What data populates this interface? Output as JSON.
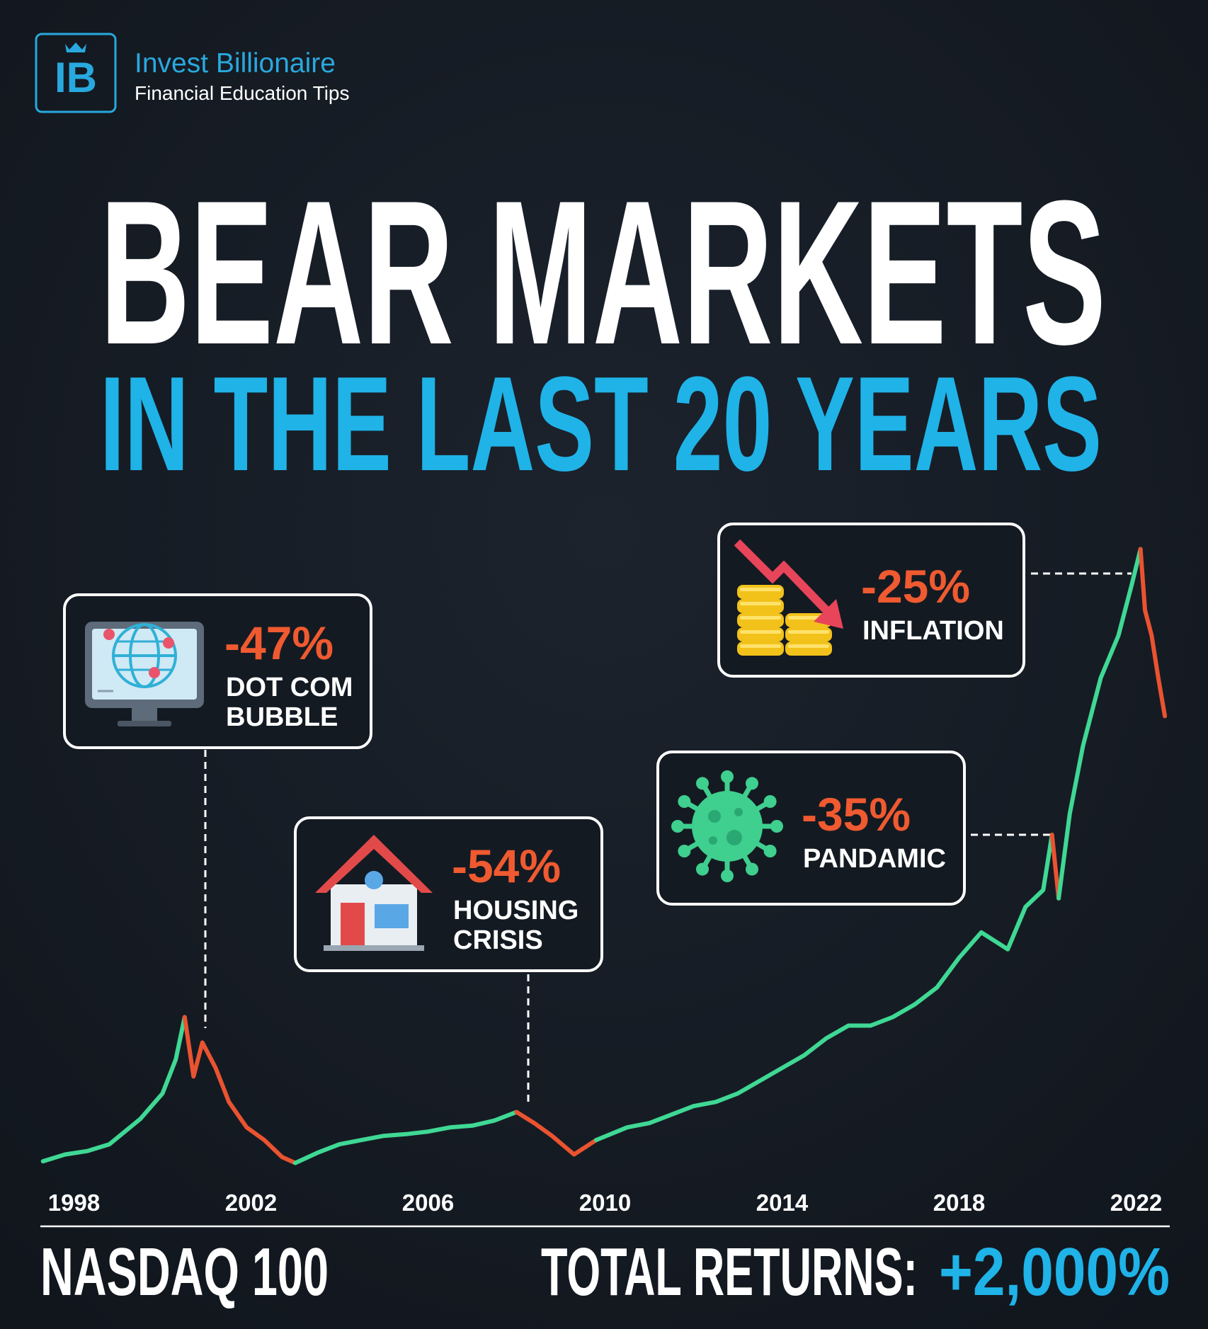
{
  "brand": {
    "logo_text": "IB",
    "name": "Invest Billionaire",
    "tagline": "Financial Education Tips"
  },
  "chart_data": {
    "type": "line",
    "title": "BEAR MARKETS",
    "subtitle": "IN THE LAST 20 YEARS",
    "xlim": [
      1997,
      2023
    ],
    "xticks": [
      1998,
      2002,
      2006,
      2010,
      2014,
      2018,
      2022
    ],
    "ylim": [
      0,
      800
    ],
    "grid": false,
    "series": [
      {
        "color": "#3fd894",
        "x": [
          1997.3,
          1997.8,
          1998.3,
          1998.8,
          1999.5,
          2000.0,
          2000.3,
          2000.5
        ],
        "values": [
          30,
          38,
          42,
          50,
          80,
          110,
          150,
          200
        ]
      },
      {
        "color": "#ea5330",
        "x": [
          2000.5,
          2000.7,
          2000.9,
          2001.2,
          2001.5,
          2001.9,
          2002.3,
          2002.7,
          2003.0
        ],
        "values": [
          200,
          130,
          170,
          140,
          100,
          70,
          55,
          35,
          28
        ]
      },
      {
        "color": "#3fd894",
        "x": [
          2003.0,
          2003.5,
          2004.0,
          2004.5,
          2005.0,
          2005.5,
          2006.0,
          2006.5,
          2007.0,
          2007.5,
          2008.0
        ],
        "values": [
          28,
          40,
          50,
          55,
          60,
          62,
          65,
          70,
          72,
          78,
          88
        ]
      },
      {
        "color": "#ea5330",
        "x": [
          2008.0,
          2008.4,
          2008.8,
          2009.3,
          2009.8
        ],
        "values": [
          88,
          75,
          60,
          38,
          55
        ]
      },
      {
        "color": "#3fd894",
        "x": [
          2009.8,
          2010.5,
          2011.0,
          2011.5,
          2012.0,
          2012.5,
          2013.0,
          2013.5,
          2014.0,
          2014.5,
          2015.0,
          2015.5,
          2016.0,
          2016.5,
          2017.0,
          2017.5,
          2018.0,
          2018.5,
          2019.1,
          2019.5,
          2019.9,
          2020.1
        ],
        "values": [
          55,
          70,
          75,
          85,
          95,
          100,
          110,
          125,
          140,
          155,
          175,
          190,
          190,
          200,
          215,
          235,
          270,
          300,
          280,
          330,
          350,
          415
        ]
      },
      {
        "color": "#ea5330",
        "x": [
          2020.1,
          2020.25
        ],
        "values": [
          415,
          340
        ]
      },
      {
        "color": "#3fd894",
        "x": [
          2020.25,
          2020.5,
          2020.8,
          2021.2,
          2021.6,
          2021.9,
          2022.1
        ],
        "values": [
          340,
          440,
          520,
          600,
          650,
          710,
          752
        ]
      },
      {
        "color": "#ea5330",
        "x": [
          2022.1,
          2022.2,
          2022.35,
          2022.5,
          2022.65
        ],
        "values": [
          752,
          680,
          650,
          600,
          555
        ]
      }
    ],
    "annotations": [
      {
        "value": -47,
        "label": "-47%",
        "text": [
          "DOT COM",
          "BUBBLE"
        ]
      },
      {
        "value": -54,
        "label": "-54%",
        "text": [
          "HOUSING",
          "CRISIS"
        ]
      },
      {
        "value": -35,
        "label": "-35%",
        "text": [
          "PANDAMIC"
        ]
      },
      {
        "value": -25,
        "label": "-25%",
        "text": [
          "INFLATION"
        ]
      }
    ],
    "index_label": "NASDAQ 100",
    "total_returns": {
      "text": "TOTAL RETURNS:",
      "value": 2000,
      "label": "+2,000%"
    }
  }
}
